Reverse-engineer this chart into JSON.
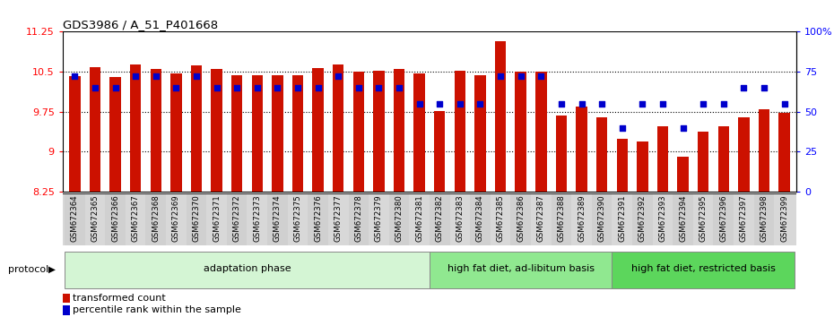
{
  "title": "GDS3986 / A_51_P401668",
  "samples": [
    "GSM672364",
    "GSM672365",
    "GSM672366",
    "GSM672367",
    "GSM672368",
    "GSM672369",
    "GSM672370",
    "GSM672371",
    "GSM672372",
    "GSM672373",
    "GSM672374",
    "GSM672375",
    "GSM672376",
    "GSM672377",
    "GSM672378",
    "GSM672379",
    "GSM672380",
    "GSM672381",
    "GSM672382",
    "GSM672383",
    "GSM672384",
    "GSM672385",
    "GSM672386",
    "GSM672387",
    "GSM672388",
    "GSM672389",
    "GSM672390",
    "GSM672391",
    "GSM672392",
    "GSM672393",
    "GSM672394",
    "GSM672395",
    "GSM672396",
    "GSM672397",
    "GSM672398",
    "GSM672399"
  ],
  "bar_values": [
    10.42,
    10.58,
    10.4,
    10.63,
    10.56,
    10.47,
    10.62,
    10.55,
    10.43,
    10.44,
    10.43,
    10.44,
    10.57,
    10.64,
    10.5,
    10.52,
    10.55,
    10.46,
    9.76,
    10.52,
    10.44,
    11.08,
    10.5,
    10.5,
    9.68,
    9.85,
    9.65,
    9.25,
    9.2,
    9.48,
    8.9,
    9.38,
    9.48,
    9.65,
    9.8,
    9.73
  ],
  "percentile_values": [
    72,
    65,
    65,
    72,
    72,
    65,
    72,
    65,
    65,
    65,
    65,
    65,
    65,
    72,
    65,
    65,
    65,
    55,
    55,
    55,
    55,
    72,
    72,
    72,
    55,
    55,
    55,
    40,
    55,
    55,
    40,
    55,
    55,
    65,
    65,
    55
  ],
  "bar_bottom": 8.25,
  "ylim_left": [
    8.25,
    11.25
  ],
  "yticks_left": [
    8.25,
    9.0,
    9.75,
    10.5,
    11.25
  ],
  "ytick_labels_left": [
    "8.25",
    "9",
    "9.75",
    "10.5",
    "11.25"
  ],
  "ylim_right": [
    0,
    100
  ],
  "yticks_right": [
    0,
    25,
    50,
    75,
    100
  ],
  "ytick_labels_right": [
    "0",
    "25",
    "50",
    "75",
    "100%"
  ],
  "groups": [
    {
      "label": "adaptation phase",
      "start": 0,
      "end": 18,
      "color": "#d4f5d4"
    },
    {
      "label": "high fat diet, ad-libitum basis",
      "start": 18,
      "end": 27,
      "color": "#90e890"
    },
    {
      "label": "high fat diet, restricted basis",
      "start": 27,
      "end": 36,
      "color": "#5cd65c"
    }
  ],
  "bar_color": "#cc1100",
  "dot_color": "#0000cc",
  "protocol_label": "protocol",
  "legend_bar_label": "transformed count",
  "legend_dot_label": "percentile rank within the sample"
}
